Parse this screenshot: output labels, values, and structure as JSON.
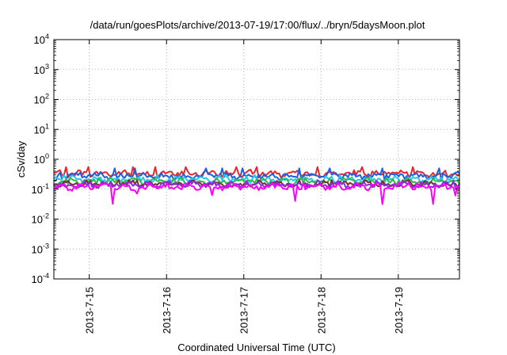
{
  "chart_data": {
    "type": "line",
    "title": "/data/run/goesPlots/archive/2013-07-19/17:00/flux/../bryn/5daysMoon.plot",
    "xlabel": "Coordinated Universal Time (UTC)",
    "ylabel": "cSv/day",
    "yscale": "log",
    "ylim": [
      0.0001,
      10000
    ],
    "y_ticks": [
      {
        "base": "10",
        "exp": "-4",
        "value": 0.0001
      },
      {
        "base": "10",
        "exp": "-3",
        "value": 0.001
      },
      {
        "base": "10",
        "exp": "-2",
        "value": 0.01
      },
      {
        "base": "10",
        "exp": "-1",
        "value": 0.1
      },
      {
        "base": "10",
        "exp": "0",
        "value": 1
      },
      {
        "base": "10",
        "exp": "1",
        "value": 10
      },
      {
        "base": "10",
        "exp": "2",
        "value": 100
      },
      {
        "base": "10",
        "exp": "3",
        "value": 1000
      },
      {
        "base": "10",
        "exp": "4",
        "value": 10000
      }
    ],
    "xlim": [
      "2013-07-14 13:00",
      "2013-07-19 19:00"
    ],
    "x_ticks": [
      {
        "label": "2013-7-15",
        "value": "2013-07-15 00:00"
      },
      {
        "label": "2013-7-16",
        "value": "2013-07-16 00:00"
      },
      {
        "label": "2013-7-17",
        "value": "2013-07-17 00:00"
      },
      {
        "label": "2013-7-18",
        "value": "2013-07-18 00:00"
      },
      {
        "label": "2013-7-19",
        "value": "2013-07-19 00:00"
      }
    ],
    "grid": true,
    "series": [
      {
        "color": "#e8262c",
        "typical": 0.33,
        "range": [
          0.22,
          0.55
        ]
      },
      {
        "color": "#1f5fe0",
        "typical": 0.28,
        "range": [
          0.18,
          0.5
        ]
      },
      {
        "color": "#25c9e8",
        "typical": 0.21,
        "range": [
          0.15,
          0.3
        ]
      },
      {
        "color": "#2fb84a",
        "typical": 0.18,
        "range": [
          0.14,
          0.24
        ]
      },
      {
        "color": "#7a2e2e",
        "typical": 0.15,
        "range": [
          0.12,
          0.2
        ]
      },
      {
        "color": "#8a2be2",
        "typical": 0.14,
        "range": [
          0.11,
          0.19
        ]
      },
      {
        "color": "#ff00ff",
        "typical": 0.12,
        "range": [
          0.03,
          0.16
        ]
      }
    ]
  }
}
